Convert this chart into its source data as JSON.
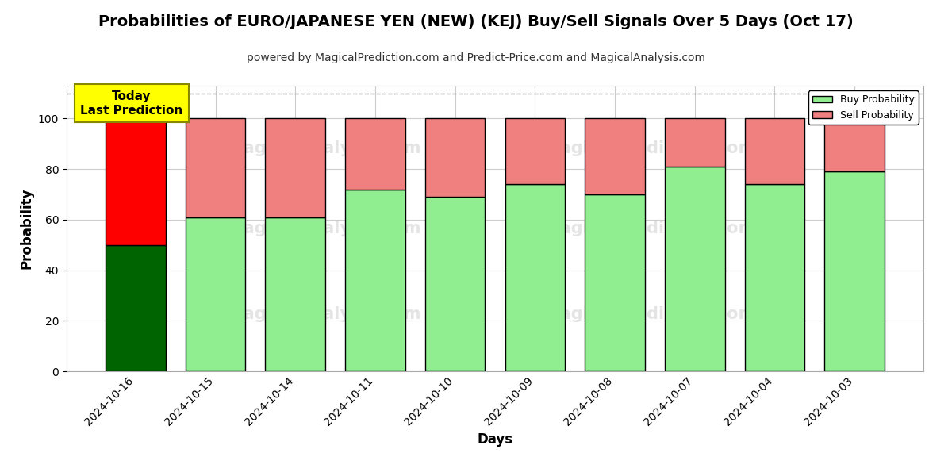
{
  "title": "Probabilities of EURO/JAPANESE YEN (NEW) (KEJ) Buy/Sell Signals Over 5 Days (Oct 17)",
  "subtitle": "powered by MagicalPrediction.com and Predict-Price.com and MagicalAnalysis.com",
  "xlabel": "Days",
  "ylabel": "Probability",
  "categories": [
    "2024-10-16",
    "2024-10-15",
    "2024-10-14",
    "2024-10-11",
    "2024-10-10",
    "2024-10-09",
    "2024-10-08",
    "2024-10-07",
    "2024-10-04",
    "2024-10-03"
  ],
  "buy_values": [
    50,
    61,
    61,
    72,
    69,
    74,
    70,
    81,
    74,
    79
  ],
  "sell_values": [
    50,
    39,
    39,
    28,
    31,
    26,
    30,
    19,
    26,
    21
  ],
  "buy_color_first": "#006400",
  "buy_color_rest": "#90EE90",
  "sell_color_first": "#FF0000",
  "sell_color_rest": "#F08080",
  "bar_edge_color": "#000000",
  "bar_edge_width": 1.0,
  "ylim": [
    0,
    113
  ],
  "yticks": [
    0,
    20,
    40,
    60,
    80,
    100
  ],
  "dashed_line_y": 110,
  "grid_color": "#cccccc",
  "bg_color": "#ffffff",
  "today_box_color": "#FFFF00",
  "today_text": "Today\nLast Prediction",
  "legend_buy_label": "Buy Probability",
  "legend_sell_label": "Sell Probability",
  "title_fontsize": 14,
  "subtitle_fontsize": 10,
  "axis_label_fontsize": 12,
  "tick_fontsize": 10
}
